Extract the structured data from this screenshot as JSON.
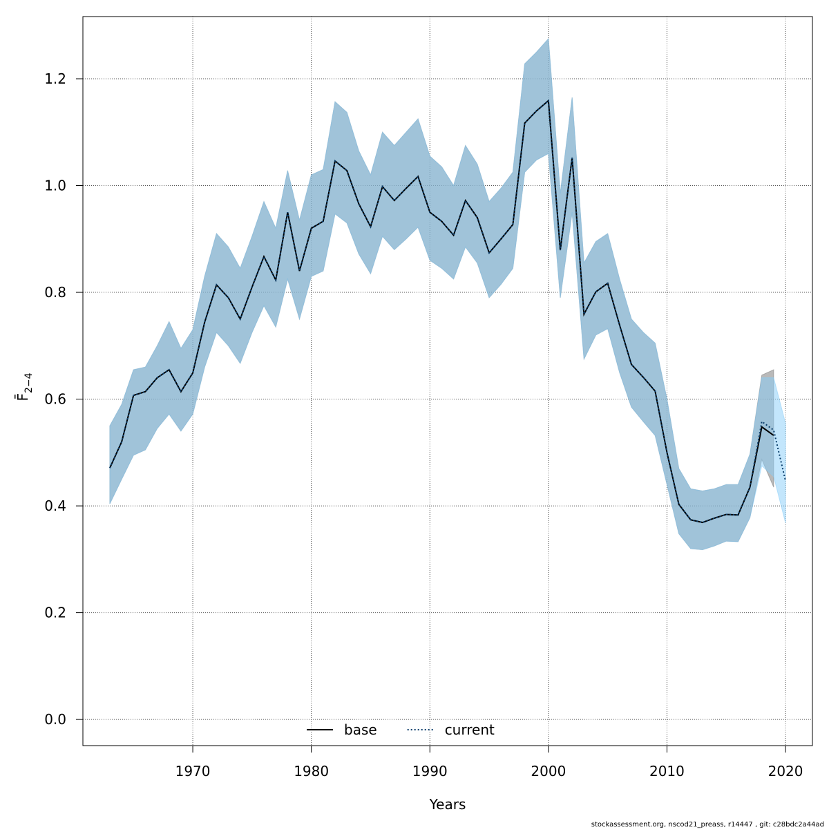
{
  "chart_data": {
    "type": "line",
    "xlabel": "Years",
    "ylabel": "F̄",
    "ylabel_sub": "2−4",
    "footer": "stockassessment.org, nscod21_preass, r14447 , git: c28bdc2a44ad",
    "x": [
      1963,
      1964,
      1965,
      1966,
      1967,
      1968,
      1969,
      1970,
      1971,
      1972,
      1973,
      1974,
      1975,
      1976,
      1977,
      1978,
      1979,
      1980,
      1981,
      1982,
      1983,
      1984,
      1985,
      1986,
      1987,
      1988,
      1989,
      1990,
      1991,
      1992,
      1993,
      1994,
      1995,
      1996,
      1997,
      1998,
      1999,
      2000,
      2001,
      2002,
      2003,
      2004,
      2005,
      2006,
      2007,
      2008,
      2009,
      2010,
      2011,
      2012,
      2013,
      2014,
      2015,
      2016,
      2017,
      2018,
      2019,
      2020
    ],
    "series": [
      {
        "name": "base",
        "color": "#000000",
        "dash": "solid",
        "band_color": "rgba(128,128,128,0.55)",
        "values": [
          0.471,
          0.52,
          0.607,
          0.614,
          0.64,
          0.655,
          0.614,
          0.649,
          0.744,
          0.814,
          0.79,
          0.75,
          0.81,
          0.867,
          0.823,
          0.95,
          0.84,
          0.92,
          0.933,
          1.046,
          1.028,
          0.966,
          0.923,
          0.998,
          0.972,
          0.995,
          1.017,
          0.95,
          0.933,
          0.907,
          0.972,
          0.94,
          0.874,
          0.9,
          0.927,
          1.117,
          1.14,
          1.159,
          0.879,
          1.052,
          0.759,
          0.801,
          0.817,
          0.739,
          0.665,
          0.641,
          0.615,
          0.5,
          0.403,
          0.374,
          0.369,
          0.377,
          0.384,
          0.383,
          0.435,
          0.548,
          0.532,
          null
        ],
        "upper": [
          0.55,
          0.59,
          0.655,
          0.66,
          0.7,
          0.745,
          0.695,
          0.73,
          0.83,
          0.91,
          0.885,
          0.845,
          0.905,
          0.97,
          0.92,
          1.028,
          0.935,
          1.02,
          1.03,
          1.157,
          1.137,
          1.065,
          1.02,
          1.1,
          1.075,
          1.1,
          1.125,
          1.055,
          1.035,
          1.0,
          1.075,
          1.04,
          0.97,
          0.995,
          1.025,
          1.228,
          1.25,
          1.275,
          0.985,
          1.165,
          0.855,
          0.895,
          0.91,
          0.825,
          0.75,
          0.725,
          0.705,
          0.6,
          0.47,
          0.432,
          0.428,
          0.432,
          0.44,
          0.44,
          0.497,
          0.645,
          0.655,
          null
        ],
        "lower": [
          0.404,
          0.45,
          0.495,
          0.505,
          0.545,
          0.572,
          0.54,
          0.572,
          0.66,
          0.725,
          0.7,
          0.667,
          0.725,
          0.775,
          0.735,
          0.825,
          0.75,
          0.83,
          0.84,
          0.947,
          0.93,
          0.872,
          0.835,
          0.905,
          0.88,
          0.9,
          0.922,
          0.86,
          0.845,
          0.825,
          0.885,
          0.855,
          0.79,
          0.815,
          0.845,
          1.025,
          1.048,
          1.06,
          0.79,
          0.95,
          0.675,
          0.72,
          0.732,
          0.65,
          0.585,
          0.558,
          0.532,
          0.44,
          0.348,
          0.32,
          0.318,
          0.325,
          0.334,
          0.333,
          0.378,
          0.487,
          0.435,
          null
        ]
      },
      {
        "name": "current",
        "color": "#0a3d6b",
        "dash": "dotted",
        "band_color": "rgba(135,206,250,0.5)",
        "values": [
          0.471,
          0.52,
          0.607,
          0.614,
          0.64,
          0.655,
          0.614,
          0.649,
          0.744,
          0.814,
          0.79,
          0.75,
          0.81,
          0.867,
          0.823,
          0.95,
          0.84,
          0.92,
          0.933,
          1.046,
          1.028,
          0.966,
          0.923,
          0.998,
          0.972,
          0.995,
          1.017,
          0.95,
          0.933,
          0.907,
          0.972,
          0.94,
          0.874,
          0.9,
          0.927,
          1.117,
          1.14,
          1.159,
          0.879,
          1.052,
          0.759,
          0.801,
          0.817,
          0.739,
          0.665,
          0.641,
          0.615,
          0.5,
          0.403,
          0.374,
          0.369,
          0.377,
          0.384,
          0.383,
          0.435,
          0.558,
          0.542,
          0.447
        ],
        "upper": [
          0.55,
          0.59,
          0.655,
          0.66,
          0.7,
          0.745,
          0.695,
          0.73,
          0.83,
          0.91,
          0.885,
          0.845,
          0.905,
          0.97,
          0.92,
          1.028,
          0.935,
          1.02,
          1.03,
          1.157,
          1.137,
          1.065,
          1.02,
          1.1,
          1.075,
          1.1,
          1.125,
          1.055,
          1.035,
          1.0,
          1.075,
          1.04,
          0.97,
          0.995,
          1.025,
          1.228,
          1.25,
          1.275,
          0.985,
          1.165,
          0.855,
          0.895,
          0.91,
          0.825,
          0.75,
          0.725,
          0.705,
          0.6,
          0.47,
          0.432,
          0.428,
          0.432,
          0.44,
          0.44,
          0.497,
          0.64,
          0.64,
          0.555
        ],
        "lower": [
          0.404,
          0.45,
          0.495,
          0.505,
          0.545,
          0.572,
          0.54,
          0.572,
          0.66,
          0.725,
          0.7,
          0.667,
          0.725,
          0.775,
          0.735,
          0.825,
          0.75,
          0.83,
          0.84,
          0.947,
          0.93,
          0.872,
          0.835,
          0.905,
          0.88,
          0.9,
          0.922,
          0.86,
          0.845,
          0.825,
          0.885,
          0.855,
          0.79,
          0.815,
          0.845,
          1.025,
          1.048,
          1.06,
          0.79,
          0.95,
          0.675,
          0.72,
          0.732,
          0.65,
          0.585,
          0.558,
          0.532,
          0.44,
          0.348,
          0.32,
          0.318,
          0.325,
          0.334,
          0.333,
          0.378,
          0.475,
          0.455,
          0.368
        ]
      }
    ],
    "xlim": [
      1960.73,
      2022.27
    ],
    "ylim": [
      -0.049,
      1.3165
    ],
    "xticks": [
      1970,
      1980,
      1990,
      2000,
      2010,
      2020
    ],
    "yticks": [
      {
        "value": 0,
        "label": "0.0"
      },
      0.2,
      0.4,
      0.6,
      0.8,
      {
        "value": 1,
        "label": "1.0"
      },
      1.2
    ],
    "grid": true,
    "legend": "bottom"
  }
}
